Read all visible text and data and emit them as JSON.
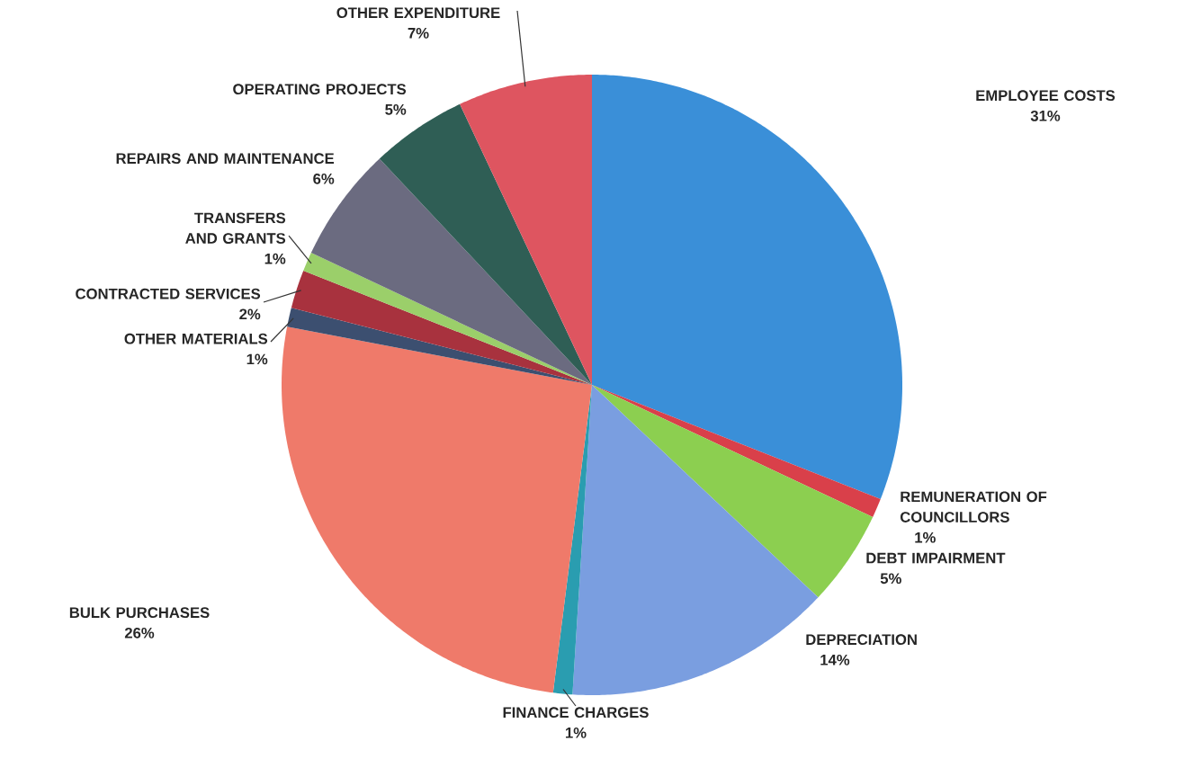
{
  "chart_data": {
    "type": "pie",
    "categories": [
      "EMPLOYEE COSTS",
      "REMUNERATION OF COUNCILLORS",
      "DEBT IMPAIRMENT",
      "DEPRECIATION",
      "FINANCE CHARGES",
      "BULK PURCHASES",
      "OTHER MATERIALS",
      "CONTRACTED SERVICES",
      "TRANSFERS AND GRANTS",
      "REPAIRS AND MAINTENANCE",
      "OPERATING PROJECTS",
      "OTHER EXPENDITURE"
    ],
    "values": [
      31,
      1,
      5,
      14,
      1,
      26,
      1,
      2,
      1,
      6,
      5,
      7
    ],
    "value_labels": [
      "31%",
      "1%",
      "5%",
      "14%",
      "1%",
      "26%",
      "1%",
      "2%",
      "1%",
      "6%",
      "5%",
      "7%"
    ],
    "colors": [
      "#3a8fd8",
      "#d9404a",
      "#8ccf50",
      "#7a9ee0",
      "#2a9db0",
      "#ef7a6a",
      "#3c4f70",
      "#a8323e",
      "#9bcf6a",
      "#6b6b80",
      "#2f5e55",
      "#de5560"
    ]
  }
}
